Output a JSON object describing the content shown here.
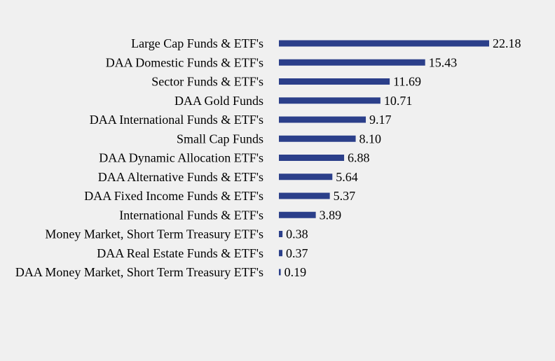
{
  "chart_data": {
    "type": "bar",
    "orientation": "horizontal",
    "categories": [
      "Large Cap Funds & ETF's",
      "DAA Domestic Funds & ETF's",
      "Sector Funds & ETF's",
      "DAA Gold Funds",
      "DAA International Funds & ETF's",
      "Small Cap Funds",
      "DAA Dynamic Allocation ETF's",
      "DAA Alternative Funds & ETF's",
      "DAA Fixed Income Funds & ETF's",
      "International Funds & ETF's",
      "Money Market, Short Term Treasury ETF's",
      "DAA Real Estate Funds & ETF's",
      "DAA Money Market, Short Term Treasury ETF's"
    ],
    "values": [
      22.18,
      15.43,
      11.69,
      10.71,
      9.17,
      8.1,
      6.88,
      5.64,
      5.37,
      3.89,
      0.38,
      0.37,
      0.19
    ],
    "value_labels": [
      "22.18",
      "15.43",
      "11.69",
      "10.71",
      "9.17",
      "8.10",
      "6.88",
      "5.64",
      "5.37",
      "3.89",
      "0.38",
      "0.37",
      "0.19"
    ],
    "title": "",
    "xlabel": "",
    "ylabel": "",
    "xlim": [
      0,
      22.18
    ],
    "grid": false,
    "legend": "none",
    "bar_color": "#2b3f8a"
  }
}
